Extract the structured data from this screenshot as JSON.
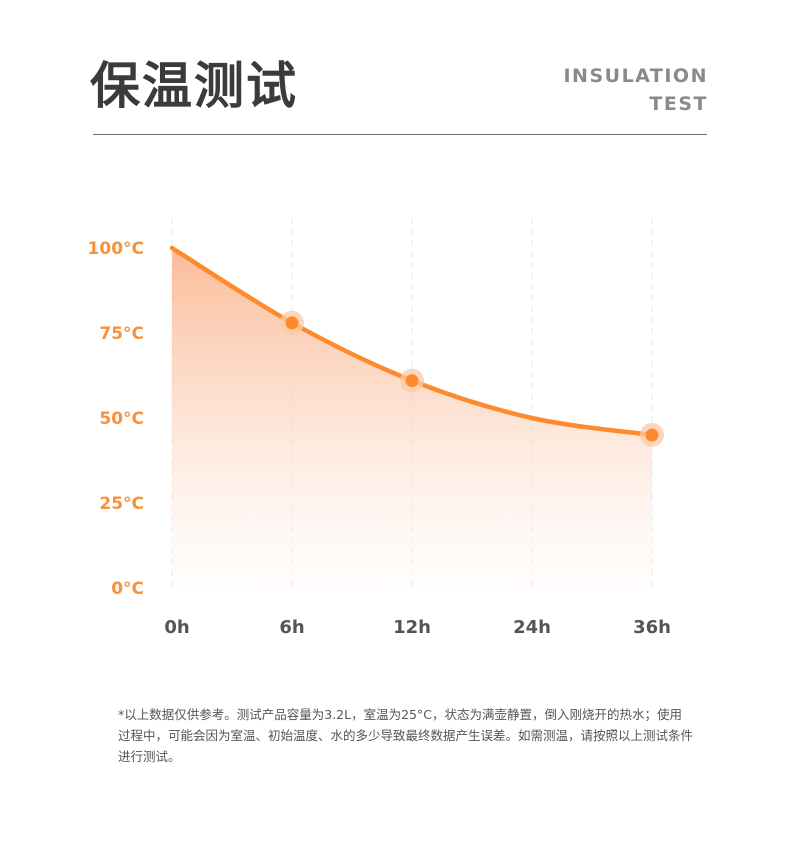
{
  "header": {
    "title": "保温测试",
    "subtitle_line1": "INSULATION",
    "subtitle_line2": "TEST"
  },
  "colors": {
    "accent": "#FF8A2D",
    "axis_label": "#F7923A",
    "x_label": "#555555"
  },
  "chart_data": {
    "type": "area",
    "categories": [
      "0h",
      "6h",
      "12h",
      "24h",
      "36h"
    ],
    "values": [
      100,
      78,
      61,
      50,
      45
    ],
    "marked_points": [
      1,
      2,
      4
    ],
    "ylim": [
      0,
      100
    ],
    "yticks": [
      "0°C",
      "25°C",
      "50°C",
      "75°C",
      "100°C"
    ],
    "ytick_values": [
      0,
      25,
      50,
      75,
      100
    ],
    "grid": "vertical-dashed"
  },
  "footnote": "*以上数据仅供参考。测试产品容量为3.2L，室温为25°C，状态为满壶静置，倒入刚烧开的热水；使用过程中，可能会因为室温、初始温度、水的多少导致最终数据产生误差。如需测温，请按照以上测试条件进行测试。"
}
